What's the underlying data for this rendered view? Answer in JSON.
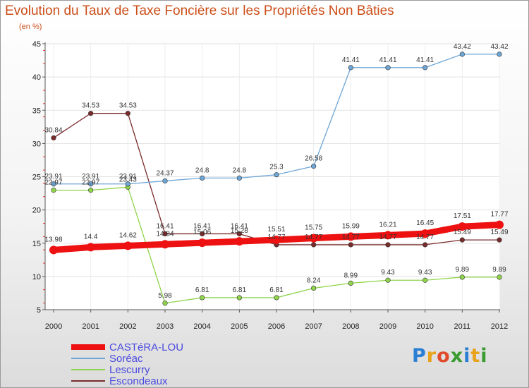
{
  "header": {
    "title": "Evolution du Taux de Taxe Foncière sur les Propriétés Non Bâties",
    "unit": "(en %)"
  },
  "logo": {
    "letters": [
      "P",
      "r",
      "o",
      "x",
      "i",
      "t",
      "i"
    ],
    "colors": [
      "#2a7fd4",
      "#e7a21a",
      "#e04a2a",
      "#3a9b2f",
      "#2a7fd4",
      "#e7a21a",
      "#3a9b2f"
    ]
  },
  "chart_data": {
    "type": "line",
    "title": "Evolution du Taux de Taxe Foncière sur les Propriétés Non Bâties",
    "ylabel": "(en %)",
    "xlabel": "",
    "x": [
      "2000",
      "2001",
      "2002",
      "2003",
      "2004",
      "2005",
      "2006",
      "2007",
      "2008",
      "2009",
      "2010",
      "2011",
      "2012"
    ],
    "ylim": [
      5,
      45
    ],
    "yticks": [
      5,
      10,
      15,
      20,
      25,
      30,
      35,
      40,
      45
    ],
    "legend_position": "bottom-left",
    "series": [
      {
        "name": "Escondeaux",
        "color": "#7a2b2b",
        "values": [
          30.84,
          34.53,
          34.53,
          16.41,
          16.41,
          16.41,
          14.77,
          14.77,
          14.77,
          14.77,
          14.77,
          15.49,
          15.49
        ],
        "labels": [
          "30.84",
          "34.53",
          "34.53",
          "16.41",
          "16.41",
          "16.41",
          "14.77",
          "14.77",
          "14.77",
          "14.77",
          "14.77",
          "15.49",
          "15.49"
        ]
      },
      {
        "name": "Lescurry",
        "color": "#8fd44a",
        "values": [
          22.97,
          22.97,
          23.43,
          5.98,
          6.81,
          6.81,
          6.81,
          8.24,
          8.99,
          9.43,
          9.43,
          9.89,
          9.89
        ],
        "labels": [
          "22.97",
          "22.97",
          "23.43",
          "5.98",
          "6.81",
          "6.81",
          "6.81",
          "8.24",
          "8.99",
          "9.43",
          "9.43",
          "9.89",
          "9.89"
        ]
      },
      {
        "name": "Soréac",
        "color": "#6ea6d6",
        "values": [
          23.91,
          23.91,
          23.91,
          24.37,
          24.8,
          24.8,
          25.3,
          26.58,
          41.41,
          41.41,
          41.41,
          43.42,
          43.42
        ],
        "labels": [
          "23.91",
          "23.91",
          "23.91",
          "24.37",
          "24.8",
          "24.8",
          "25.3",
          "26.58",
          "41.41",
          "41.41",
          "41.41",
          "43.42",
          "43.42"
        ]
      },
      {
        "name": "CASTéRA-LOU",
        "color": "#ee1111",
        "values": [
          13.98,
          14.4,
          14.62,
          14.84,
          15.06,
          15.28,
          15.51,
          15.75,
          15.99,
          16.21,
          16.45,
          17.51,
          17.77
        ],
        "labels": [
          "13.98",
          "14.4",
          "14.62",
          "14.84",
          "15.06",
          "15.28",
          "15.51",
          "15.75",
          "15.99",
          "16.21",
          "16.45",
          "17.51",
          "17.77"
        ]
      }
    ]
  },
  "legend": [
    {
      "name": "CASTéRA-LOU",
      "color": "#ee1111"
    },
    {
      "name": "Soréac",
      "color": "#6ea6d6"
    },
    {
      "name": "Lescurry",
      "color": "#8fd44a"
    },
    {
      "name": "Escondeaux",
      "color": "#7a2b2b"
    }
  ]
}
